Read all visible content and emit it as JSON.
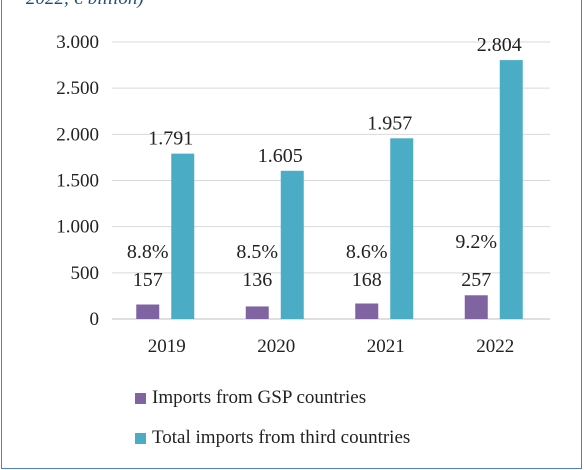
{
  "caption": "2022, € billion)",
  "colors": {
    "gsp": "#8064a2",
    "third": "#4bacc6",
    "grid": "#d9d9d9",
    "frame": "#4f81bd"
  },
  "chart_data": {
    "type": "bar",
    "categories": [
      "2019",
      "2020",
      "2021",
      "2022"
    ],
    "series": [
      {
        "name": "Imports from GSP countries",
        "values": [
          157,
          136,
          168,
          257
        ]
      },
      {
        "name": "Total imports from third countries",
        "values": [
          1791,
          1605,
          1957,
          2804
        ]
      }
    ],
    "value_labels": {
      "gsp": [
        "157",
        "136",
        "168",
        "257"
      ],
      "third": [
        "1.791",
        "1.605",
        "1.957",
        "2.804"
      ]
    },
    "share_labels": [
      "8.8%",
      "8.5%",
      "8.6%",
      "9.2%"
    ],
    "yticks": [
      {
        "value": 0,
        "label": "0"
      },
      {
        "value": 500,
        "label": "500"
      },
      {
        "value": 1000,
        "label": "1.000"
      },
      {
        "value": 1500,
        "label": "1.500"
      },
      {
        "value": 2000,
        "label": "2.000"
      },
      {
        "value": 2500,
        "label": "2.500"
      },
      {
        "value": 3000,
        "label": "3.000"
      }
    ],
    "ylim": [
      0,
      3000
    ],
    "grid": true,
    "legend_position": "bottom"
  }
}
